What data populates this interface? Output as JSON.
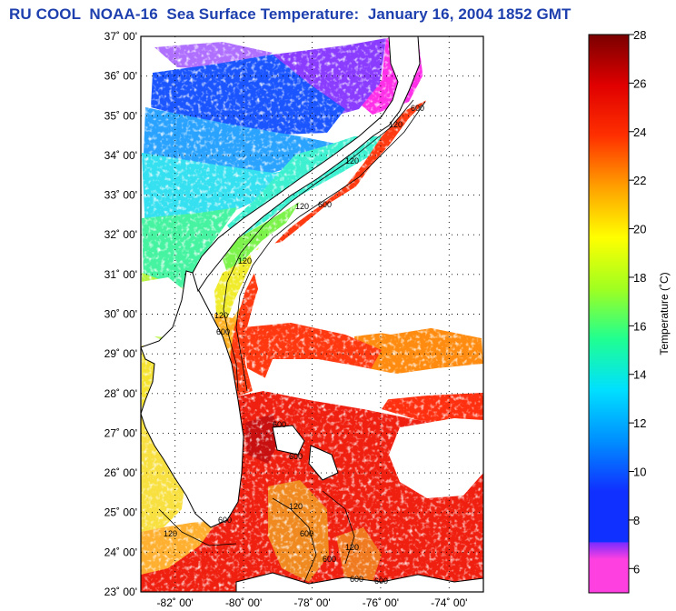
{
  "title": "RU COOL  NOAA-16  Sea Surface Temperature:  January 16, 2004 1852 GMT",
  "map": {
    "lat_labels": [
      "37˚ 00'",
      "36˚ 00'",
      "35˚ 00'",
      "34˚ 00'",
      "33˚ 00'",
      "32˚ 00'",
      "31˚ 00'",
      "30˚ 00'",
      "29˚ 00'",
      "28˚ 00'",
      "27˚ 00'",
      "26˚ 00'",
      "25˚ 00'",
      "24˚ 00'",
      "23˚ 00'"
    ],
    "lon_labels": [
      "-82˚ 00'",
      "-80˚ 00'",
      "-78˚ 00'",
      "-76˚ 00'",
      "-74˚ 00'"
    ],
    "contour_labels": [
      "120",
      "600",
      "120",
      "120",
      "600",
      "120",
      "600",
      "120",
      "600",
      "600",
      "120",
      "600",
      "600",
      "120",
      "120",
      "600",
      "600",
      "600"
    ]
  },
  "colorbar": {
    "label": "Temperature (˚C)",
    "ticks": [
      "28",
      "26",
      "24",
      "22",
      "20",
      "18",
      "16",
      "14",
      "12",
      "10",
      "8",
      "6"
    ],
    "colors": {
      "t6": "#ff40e0",
      "t8": "#7a2cff",
      "t10": "#1030ff",
      "t12": "#0090ff",
      "t14": "#00e0ff",
      "t16": "#20ff90",
      "t18": "#a0ff20",
      "t20": "#ffff00",
      "t22": "#ffa000",
      "t24": "#ff3000",
      "t26": "#e00000",
      "t28": "#7a0000"
    }
  }
}
